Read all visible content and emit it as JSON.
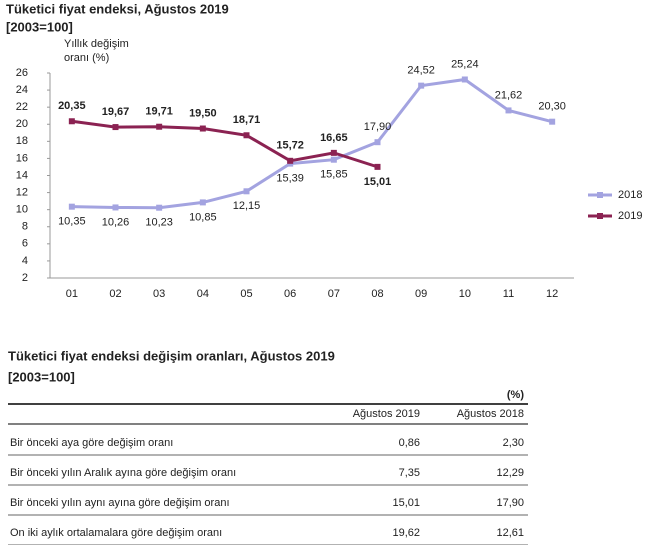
{
  "chart_data": {
    "type": "line",
    "title": "Tüketici fiyat endeksi, Ağustos 2019",
    "subtitle": "[2003=100]",
    "y_label": [
      "Yıllık  değişim",
      "oranı (%)"
    ],
    "categories": [
      "01",
      "02",
      "03",
      "04",
      "05",
      "06",
      "07",
      "08",
      "09",
      "10",
      "11",
      "12"
    ],
    "series": [
      {
        "name": "2018",
        "color": "#a3a3e0",
        "values": [
          10.35,
          10.26,
          10.23,
          10.85,
          12.15,
          15.39,
          15.85,
          17.9,
          24.52,
          25.24,
          21.62,
          20.3
        ],
        "value_labels": [
          "10,35",
          "10,26",
          "10,23",
          "10,85",
          "12,15",
          "15,39",
          "15,85",
          "17,90",
          "24,52",
          "25,24",
          "21,62",
          "20,30"
        ]
      },
      {
        "name": "2019",
        "color": "#8b2252",
        "values": [
          20.35,
          19.67,
          19.71,
          19.5,
          18.71,
          15.72,
          16.65,
          15.01,
          null,
          null,
          null,
          null
        ],
        "value_labels": [
          "20,35",
          "19,67",
          "19,71",
          "19,50",
          "18,71",
          "15,72",
          "16,65",
          "15,01",
          null,
          null,
          null,
          null
        ]
      }
    ],
    "ylim": [
      2,
      26
    ],
    "yticks": [
      2,
      4,
      6,
      8,
      10,
      12,
      14,
      16,
      18,
      20,
      22,
      24,
      26
    ],
    "grid": false,
    "legend": "right"
  },
  "table": {
    "title": "Tüketici fiyat endeksi değişim oranları, Ağustos 2019",
    "subtitle": "[2003=100]",
    "unit": "(%)",
    "columns": [
      "Ağustos 2019",
      "Ağustos 2018"
    ],
    "rows": [
      [
        "Bir önceki aya göre değişim oranı",
        "0,86",
        "2,30"
      ],
      [
        "Bir önceki yılın Aralık ayına göre değişim oranı",
        "7,35",
        "12,29"
      ],
      [
        "Bir önceki yılın aynı ayına göre değişim oranı",
        "15,01",
        "17,90"
      ],
      [
        "On iki aylık ortalamalara göre değişim oranı",
        "19,62",
        "12,61"
      ]
    ]
  }
}
